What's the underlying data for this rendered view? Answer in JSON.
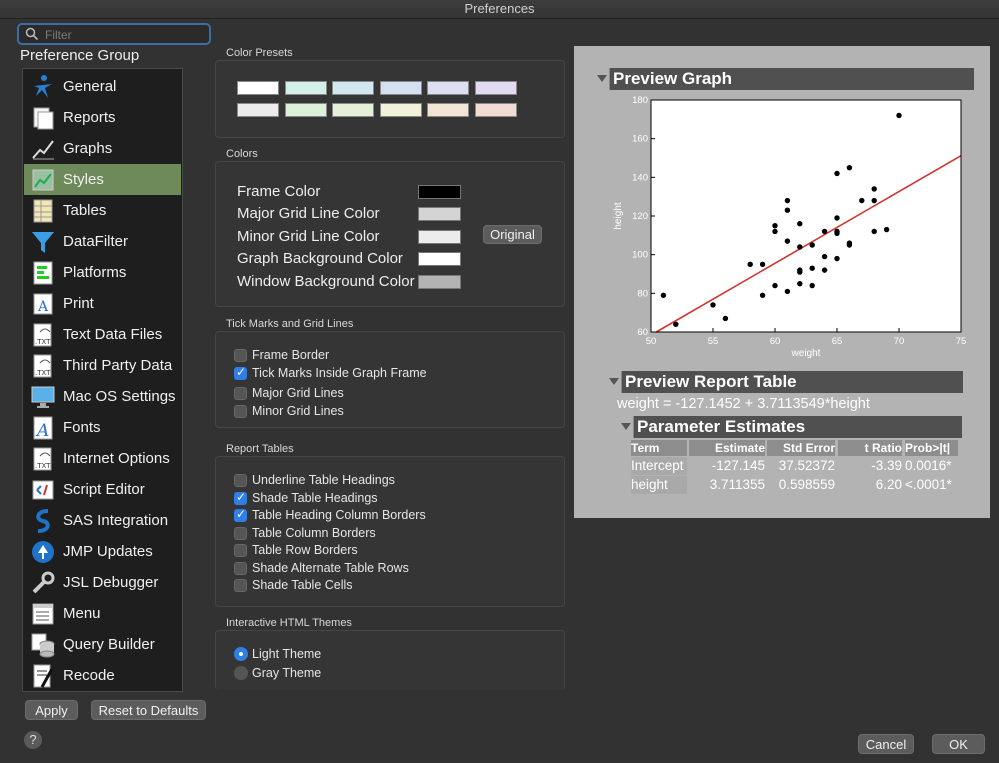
{
  "window": {
    "title": "Preferences"
  },
  "filter": {
    "placeholder": "Filter"
  },
  "preference_group_label": "Preference Group",
  "sidebar": {
    "items": [
      {
        "label": "General",
        "icon": "general-icon"
      },
      {
        "label": "Reports",
        "icon": "reports-icon"
      },
      {
        "label": "Graphs",
        "icon": "graphs-icon"
      },
      {
        "label": "Styles",
        "icon": "styles-icon",
        "selected": true
      },
      {
        "label": "Tables",
        "icon": "tables-icon"
      },
      {
        "label": "DataFilter",
        "icon": "funnel-icon"
      },
      {
        "label": "Platforms",
        "icon": "platforms-icon"
      },
      {
        "label": "Print",
        "icon": "print-icon"
      },
      {
        "label": "Text Data Files",
        "icon": "txt-file-icon"
      },
      {
        "label": "Third Party Data",
        "icon": "txt-file-icon"
      },
      {
        "label": "Mac OS Settings",
        "icon": "monitor-icon"
      },
      {
        "label": "Fonts",
        "icon": "fonts-icon"
      },
      {
        "label": "Internet Options",
        "icon": "txt-file-icon"
      },
      {
        "label": "Script Editor",
        "icon": "script-editor-icon"
      },
      {
        "label": "SAS Integration",
        "icon": "sas-icon"
      },
      {
        "label": "JMP Updates",
        "icon": "updates-icon"
      },
      {
        "label": "JSL Debugger",
        "icon": "wrench-icon"
      },
      {
        "label": "Menu",
        "icon": "menu-icon"
      },
      {
        "label": "Query Builder",
        "icon": "database-icon"
      },
      {
        "label": "Recode",
        "icon": "recode-icon"
      }
    ]
  },
  "buttons": {
    "apply": "Apply",
    "reset": "Reset to Defaults",
    "original": "Original",
    "cancel": "Cancel",
    "ok": "OK",
    "help": "?"
  },
  "color_presets": {
    "title": "Color Presets",
    "row1": [
      "#ffffff",
      "#d3efea",
      "#d2e8ef",
      "#d5e1f0",
      "#dcdff3",
      "#e2d9f3"
    ],
    "row2": [
      "#ececec",
      "#ddf0d8",
      "#e4f1d8",
      "#f2f2da",
      "#f2e5d5",
      "#f2dcd5"
    ]
  },
  "colors": {
    "title": "Colors",
    "rows": [
      {
        "label": "Frame Color",
        "color": "#000000"
      },
      {
        "label": "Major Grid Line Color",
        "color": "#d4d4d4"
      },
      {
        "label": "Minor Grid Line Color",
        "color": "#ececec"
      },
      {
        "label": "Graph Background Color",
        "color": "#ffffff"
      },
      {
        "label": "Window Background Color",
        "color": "#b3b3b3"
      }
    ]
  },
  "tick_marks": {
    "title": "Tick Marks and Grid Lines",
    "options": [
      {
        "label": "Frame Border",
        "checked": false
      },
      {
        "label": "Tick Marks Inside Graph Frame",
        "checked": true
      },
      {
        "label": "Major Grid Lines",
        "checked": false
      },
      {
        "label": "Minor Grid Lines",
        "checked": false
      }
    ]
  },
  "report_tables": {
    "title": "Report Tables",
    "options": [
      {
        "label": "Underline Table Headings",
        "checked": false
      },
      {
        "label": "Shade Table Headings",
        "checked": true
      },
      {
        "label": "Table Heading Column Borders",
        "checked": true
      },
      {
        "label": "Table Column Borders",
        "checked": false
      },
      {
        "label": "Table Row Borders",
        "checked": false
      },
      {
        "label": "Shade Alternate Table Rows",
        "checked": false
      },
      {
        "label": "Shade Table Cells",
        "checked": false
      }
    ]
  },
  "html_themes": {
    "title": "Interactive HTML Themes",
    "options": [
      {
        "label": "Light Theme",
        "selected": true
      },
      {
        "label": "Gray Theme",
        "selected": false
      }
    ]
  },
  "preview": {
    "graph_title": "Preview Graph",
    "report_title": "Preview Report Table",
    "equation": "weight = -127.1452 + 3.7113549*height",
    "param_title": "Parameter Estimates",
    "table": {
      "headers": [
        "Term",
        "Estimate",
        "Std Error",
        "t Ratio",
        "Prob>|t|"
      ],
      "rows": [
        [
          "Intercept",
          "-127.145",
          "37.52372",
          "-3.39",
          "0.0016*"
        ],
        [
          "height",
          "3.711355",
          "0.598559",
          "6.20",
          "<.0001*"
        ]
      ]
    }
  },
  "chart_data": {
    "type": "scatter",
    "xlabel": "weight",
    "ylabel": "height",
    "xlim": [
      50,
      75
    ],
    "ylim": [
      60,
      180
    ],
    "xticks": [
      50,
      55,
      60,
      65,
      70,
      75
    ],
    "yticks": [
      60,
      80,
      100,
      120,
      140,
      160,
      180
    ],
    "points": [
      [
        51,
        79
      ],
      [
        52,
        64
      ],
      [
        55,
        74
      ],
      [
        56,
        67
      ],
      [
        58,
        95
      ],
      [
        59,
        95
      ],
      [
        59,
        79
      ],
      [
        60,
        115
      ],
      [
        60,
        112
      ],
      [
        60,
        84
      ],
      [
        61,
        128
      ],
      [
        61,
        123
      ],
      [
        61,
        107
      ],
      [
        61,
        81
      ],
      [
        62,
        116
      ],
      [
        62,
        104
      ],
      [
        62,
        92
      ],
      [
        62,
        91
      ],
      [
        62,
        85
      ],
      [
        63,
        105
      ],
      [
        63,
        93
      ],
      [
        63,
        84
      ],
      [
        64,
        112
      ],
      [
        64,
        99
      ],
      [
        64,
        92
      ],
      [
        65,
        142
      ],
      [
        65,
        119
      ],
      [
        65,
        112
      ],
      [
        65,
        111
      ],
      [
        65,
        98
      ],
      [
        66,
        145
      ],
      [
        66,
        106
      ],
      [
        66,
        105
      ],
      [
        67,
        128
      ],
      [
        68,
        134
      ],
      [
        68,
        128
      ],
      [
        68,
        112
      ],
      [
        69,
        113
      ],
      [
        70,
        172
      ]
    ],
    "fit_line": {
      "intercept": -127.1452,
      "slope": 3.7113549
    },
    "colors": {
      "points": "#000000",
      "fit": "#d2352f",
      "background": "#ffffff"
    },
    "grid": false
  }
}
